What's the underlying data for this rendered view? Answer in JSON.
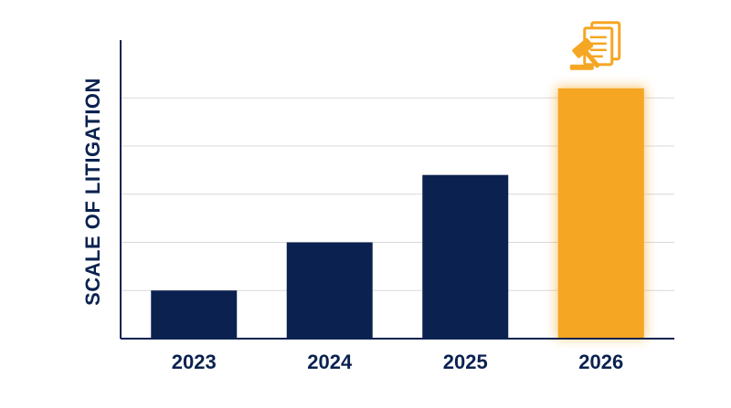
{
  "chart_data": {
    "type": "bar",
    "categories": [
      "2023",
      "2024",
      "2025",
      "2026"
    ],
    "values": [
      1,
      2,
      3.4,
      5.2
    ],
    "ylim": [
      0,
      6.2
    ],
    "gridlines": [
      1,
      2,
      3,
      4,
      5
    ],
    "grid": true,
    "xlabel": "",
    "ylabel": "SCALE OF LITIGATION",
    "highlight_index": 3,
    "highlight_icon": "gavel-documents-icon"
  },
  "colors": {
    "bar": "#0b2250",
    "highlight": "#f5a623",
    "axis": "#0b2250",
    "grid": "#d9d9d9",
    "text": "#0b2250"
  }
}
